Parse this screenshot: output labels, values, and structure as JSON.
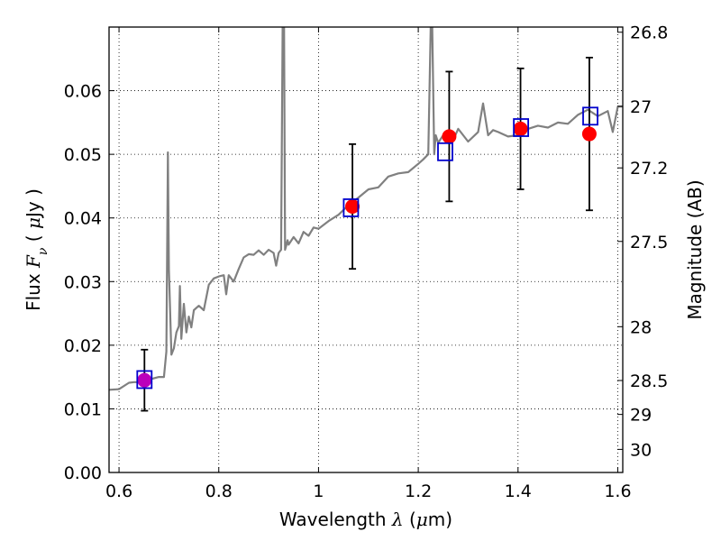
{
  "chart_data": {
    "type": "scatter",
    "xlabel_prefix": "Wavelength ",
    "xlabel_symbol": "λ",
    "xlabel_unit_open": " (",
    "xlabel_unit_mu": "μ",
    "xlabel_unit_rest": "m)",
    "ylabel_prefix": "Flux  ",
    "ylabel_symbol": "F",
    "ylabel_sub": "ν",
    "ylabel_unit_open": "  ( ",
    "ylabel_unit_mu": "μ",
    "ylabel_unit_rest": "Jy )",
    "y2label": "Magnitude (AB)",
    "xlim": [
      0.58,
      1.61
    ],
    "ylim": [
      0.0,
      0.07
    ],
    "grid": true,
    "x_ticks": [
      {
        "value": 0.6,
        "label": "0.6"
      },
      {
        "value": 0.8,
        "label": "0.8"
      },
      {
        "value": 1.0,
        "label": "1"
      },
      {
        "value": 1.2,
        "label": "1.2"
      },
      {
        "value": 1.4,
        "label": "1.4"
      },
      {
        "value": 1.6,
        "label": "1.6"
      }
    ],
    "y_ticks": [
      {
        "value": 0.0,
        "label": "0.00"
      },
      {
        "value": 0.01,
        "label": "0.01"
      },
      {
        "value": 0.02,
        "label": "0.02"
      },
      {
        "value": 0.03,
        "label": "0.03"
      },
      {
        "value": 0.04,
        "label": "0.04"
      },
      {
        "value": 0.05,
        "label": "0.05"
      },
      {
        "value": 0.06,
        "label": "0.06"
      }
    ],
    "y2_ticks": [
      {
        "value": 26.8,
        "label": "26.8"
      },
      {
        "value": 27.0,
        "label": "27"
      },
      {
        "value": 27.2,
        "label": "27.2"
      },
      {
        "value": 27.5,
        "label": "27.5"
      },
      {
        "value": 28.0,
        "label": "28"
      },
      {
        "value": 28.5,
        "label": "28.5"
      },
      {
        "value": 29.0,
        "label": "29"
      },
      {
        "value": 30.0,
        "label": "30"
      }
    ],
    "series": [
      {
        "kind": "line",
        "color": "#808080",
        "x": [
          0.58,
          0.6,
          0.62,
          0.63,
          0.64,
          0.66,
          0.68,
          0.69,
          0.695,
          0.698,
          0.7,
          0.705,
          0.71,
          0.715,
          0.72,
          0.722,
          0.725,
          0.73,
          0.735,
          0.74,
          0.745,
          0.75,
          0.76,
          0.77,
          0.78,
          0.79,
          0.8,
          0.81,
          0.815,
          0.82,
          0.83,
          0.84,
          0.85,
          0.86,
          0.87,
          0.88,
          0.89,
          0.9,
          0.91,
          0.915,
          0.92,
          0.925,
          0.928,
          0.931,
          0.933,
          0.935,
          0.938,
          0.94,
          0.95,
          0.96,
          0.97,
          0.98,
          0.99,
          1.0,
          1.02,
          1.04,
          1.06,
          1.08,
          1.1,
          1.12,
          1.14,
          1.16,
          1.18,
          1.2,
          1.21,
          1.22,
          1.225,
          1.228,
          1.232,
          1.235,
          1.24,
          1.25,
          1.26,
          1.27,
          1.28,
          1.3,
          1.32,
          1.33,
          1.34,
          1.35,
          1.36,
          1.38,
          1.4,
          1.42,
          1.44,
          1.46,
          1.48,
          1.5,
          1.52,
          1.54,
          1.56,
          1.58,
          1.59,
          1.6,
          1.61
        ],
        "y": [
          0.013,
          0.0131,
          0.0141,
          0.0142,
          0.0142,
          0.0146,
          0.015,
          0.015,
          0.019,
          0.0503,
          0.032,
          0.0185,
          0.0195,
          0.022,
          0.023,
          0.0293,
          0.021,
          0.0265,
          0.022,
          0.0245,
          0.0228,
          0.0255,
          0.0262,
          0.0255,
          0.0295,
          0.0305,
          0.0308,
          0.031,
          0.028,
          0.031,
          0.03,
          0.032,
          0.0338,
          0.0343,
          0.0342,
          0.0349,
          0.0342,
          0.035,
          0.0345,
          0.0325,
          0.0345,
          0.035,
          0.07,
          0.07,
          0.035,
          0.0356,
          0.0365,
          0.0358,
          0.037,
          0.036,
          0.0378,
          0.0372,
          0.0385,
          0.0383,
          0.0395,
          0.0405,
          0.042,
          0.0432,
          0.0445,
          0.0448,
          0.0465,
          0.047,
          0.0472,
          0.0485,
          0.0492,
          0.05,
          0.07,
          0.07,
          0.05,
          0.053,
          0.0518,
          0.053,
          0.0535,
          0.0522,
          0.054,
          0.052,
          0.0535,
          0.058,
          0.053,
          0.0538,
          0.0535,
          0.0528,
          0.053,
          0.054,
          0.0545,
          0.0542,
          0.055,
          0.0548,
          0.0562,
          0.057,
          0.056,
          0.0568,
          0.0535,
          0.0575,
          0.0575
        ]
      },
      {
        "kind": "points",
        "marker": "circle",
        "color": "#ff0000",
        "x": [
          0.651,
          1.068,
          1.262,
          1.405,
          1.543
        ],
        "y": [
          0.0145,
          0.0418,
          0.0528,
          0.054,
          0.0532
        ],
        "yerr": [
          0.0048,
          0.0098,
          0.0102,
          0.0095,
          0.012
        ]
      },
      {
        "kind": "points",
        "marker": "square-open",
        "color": "#0000cc",
        "x": [
          0.651,
          1.065,
          1.254,
          1.406,
          1.545
        ],
        "y": [
          0.0146,
          0.0416,
          0.0504,
          0.0542,
          0.056
        ]
      }
    ]
  }
}
